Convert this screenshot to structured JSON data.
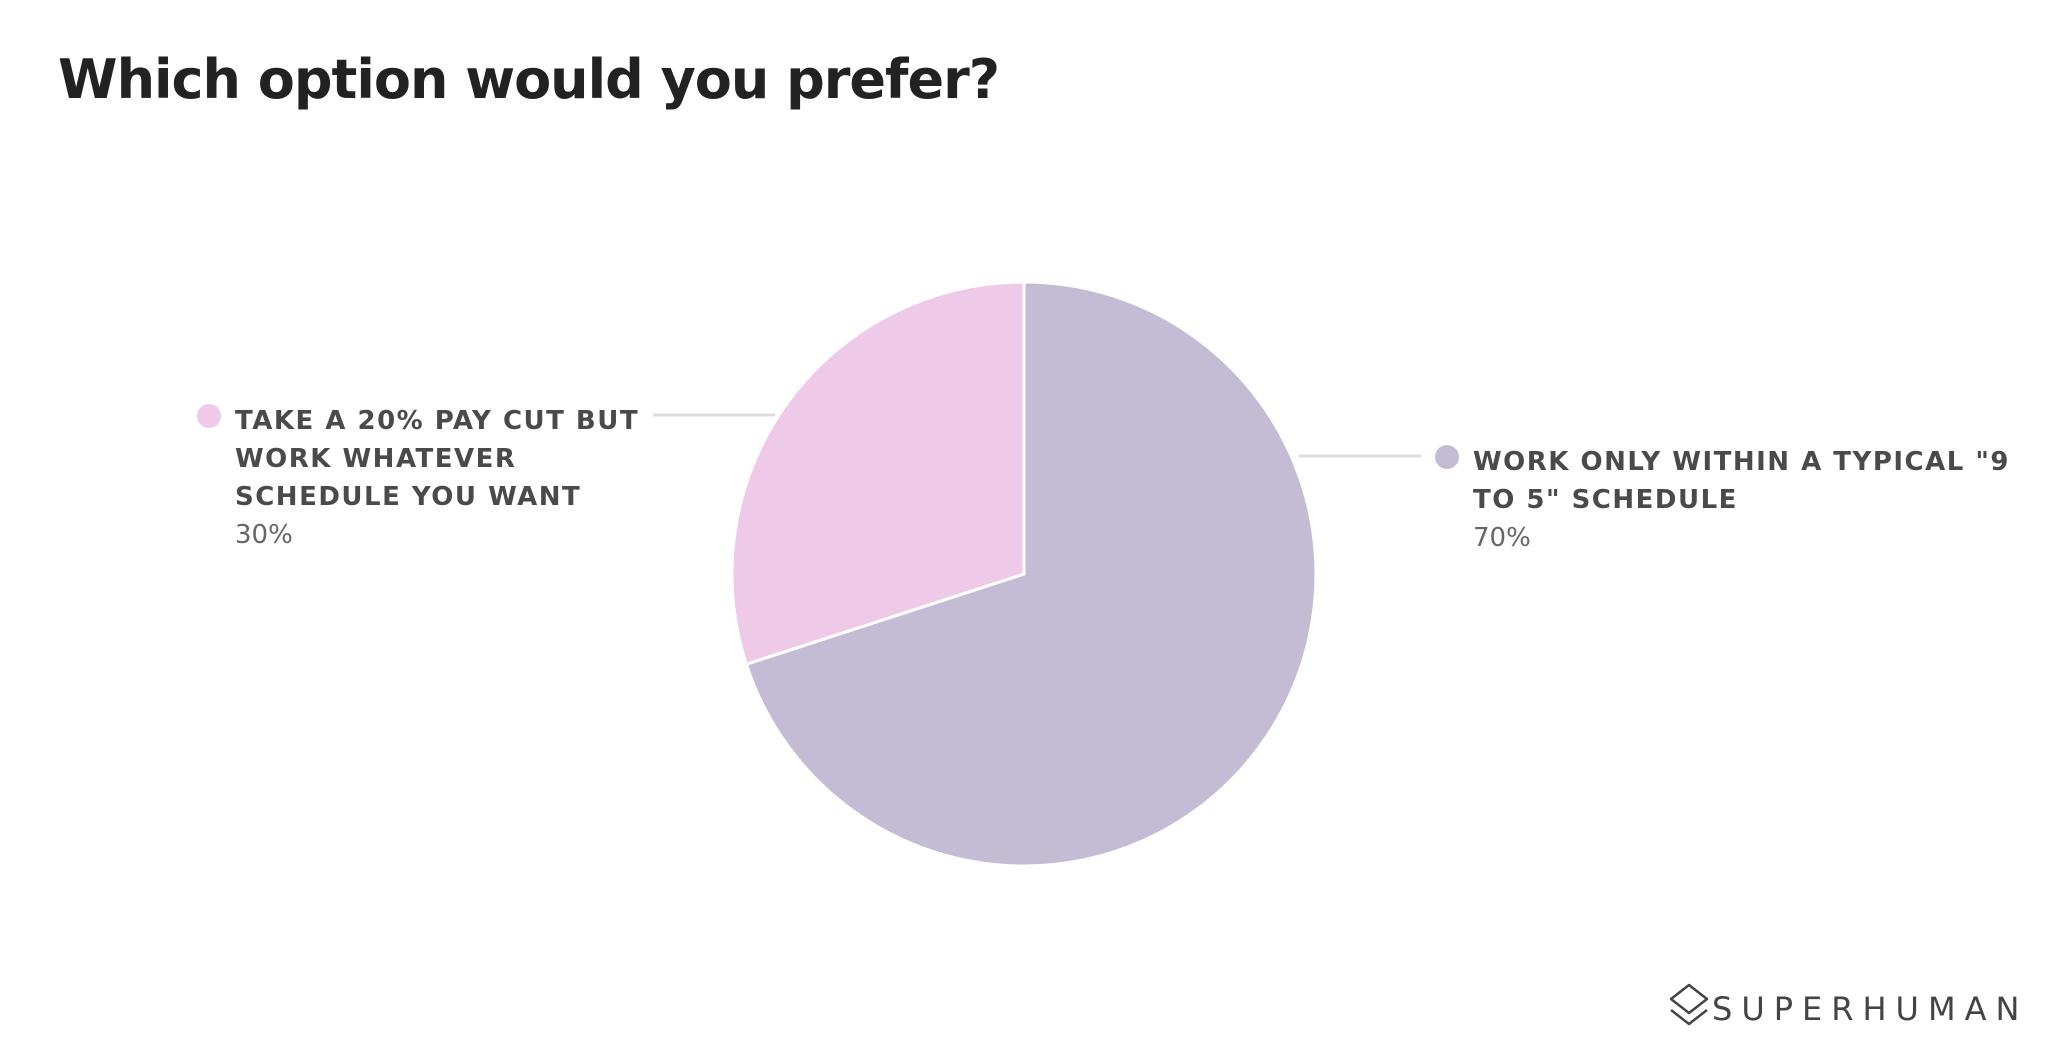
{
  "chart_data": {
    "type": "pie",
    "title": "Which option would you prefer?",
    "categories": [
      "WORK ONLY WITHIN A TYPICAL \"9 TO 5\" SCHEDULE",
      "TAKE A 20% PAY CUT BUT WORK WHATEVER SCHEDULE YOU WANT"
    ],
    "values": [
      70,
      30
    ],
    "value_labels": [
      "70%",
      "30%"
    ],
    "colors": [
      "#c4bbd5",
      "#eec9e8"
    ]
  },
  "brand": "SUPERHUMAN"
}
